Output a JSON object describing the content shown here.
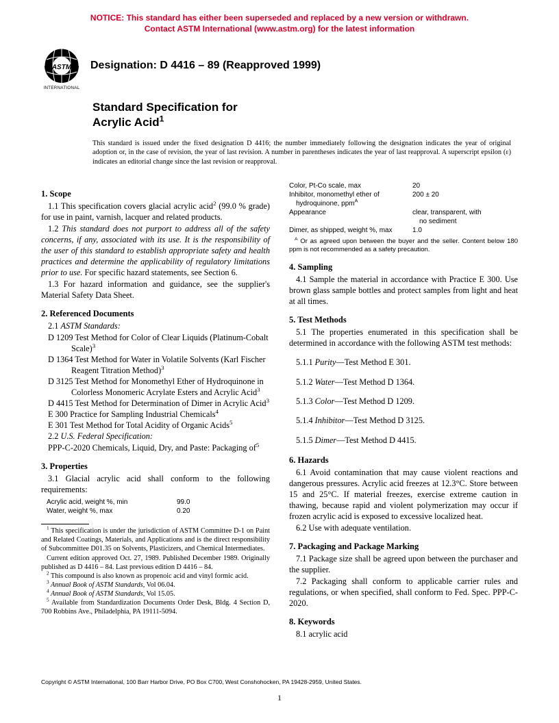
{
  "notice": {
    "color": "#d4002a",
    "line1": "NOTICE: This standard has either been superseded and replaced by a new version or withdrawn.",
    "line2": "Contact ASTM International (www.astm.org) for the latest information"
  },
  "logo": {
    "top_text": "ASTM",
    "bottom_text": "INTERNATIONAL",
    "fill": "#000000"
  },
  "designation": "Designation: D 4416 – 89 (Reapproved 1999)",
  "title_line1": "Standard Specification for",
  "title_line2": "Acrylic Acid",
  "title_sup": "1",
  "issuance": "This standard is issued under the fixed designation D 4416; the number immediately following the designation indicates the year of original adoption or, in the case of revision, the year of last revision. A number in parentheses indicates the year of last reapproval. A superscript epsilon (ε) indicates an editorial change since the last revision or reapproval.",
  "s1": {
    "head": "1.  Scope",
    "p1_a": "1.1 This specification covers glacial acrylic acid",
    "p1_sup": "2",
    "p1_b": " (99.0 % grade) for use in paint, varnish, lacquer and related products.",
    "p2_a": "1.2 ",
    "p2_i": "This standard does not purport to address all of the safety concerns, if any, associated with its use. It is the responsibility of the user of this standard to establish appropriate safety and health practices and determine the applicability of regulatory limitations prior to use.",
    "p2_b": " For specific hazard statements, see Section 6.",
    "p3": "1.3 For hazard information and guidance, see the supplier's Material Safety Data Sheet."
  },
  "s2": {
    "head": "2.  Referenced Documents",
    "p1_a": "2.1 ",
    "p1_i": "ASTM Standards:",
    "refs": [
      {
        "t": "D 1209  Test Method for Color of Clear Liquids (Platinum-Cobalt Scale)",
        "s": "3"
      },
      {
        "t": "D 1364  Test Method for Water in Volatile Solvents (Karl Fischer Reagent Titration Method)",
        "s": "3"
      },
      {
        "t": "D 3125  Test Method for Monomethyl Ether of Hydroquinone in Colorless Monomeric Acrylate Esters and Acrylic Acid",
        "s": "3"
      },
      {
        "t": "D 4415  Test Method for Determination of Dimer in Acrylic Acid",
        "s": "3"
      },
      {
        "t": "E 300  Practice for Sampling Industrial Chemicals",
        "s": "4"
      },
      {
        "t": "E 301  Test Method for Total Acidity of Organic Acids",
        "s": "5"
      }
    ],
    "p2_a": "2.2  ",
    "p2_i": "U.S. Federal Specification:",
    "fed": {
      "t": "PPP-C-2020  Chemicals, Liquid, Dry, and Paste: Packaging of",
      "s": "5"
    }
  },
  "s3": {
    "head": "3.  Properties",
    "p1": "3.1 Glacial acrylic acid shall conform to the following requirements:",
    "rows_left": [
      {
        "k": "Acrylic acid, weight %, min",
        "v": "99.0"
      },
      {
        "k": "Water, weight %, max",
        "v": "0.20"
      }
    ],
    "rows_right": [
      {
        "k": "Color, Pt-Co scale, max",
        "v": "20"
      },
      {
        "k": "Inhibitor, monomethyl ether of",
        "v": "200 ± 20"
      },
      {
        "k_indent": "hydroquinone, ppm",
        "ks": "A",
        "v": ""
      },
      {
        "k": "Appearance",
        "v": "clear, transparent, with"
      },
      {
        "k": "",
        "v_indent": "no sediment"
      },
      {
        "k": "Dimer, as shipped, weight %, max",
        "v": "1.0"
      }
    ],
    "tnote": " Or as agreed upon between the buyer and the seller. Content below 180 ppm is not recommended as a safety precaution.",
    "tnote_sup": "A"
  },
  "s4": {
    "head": "4.  Sampling",
    "p1": "4.1 Sample the material in accordance with Practice E 300. Use brown glass sample bottles and protect samples from light and heat at all times."
  },
  "s5": {
    "head": "5.  Test Methods",
    "p1": "5.1 The properties enumerated in this specification shall be determined in accordance with the following ASTM test methods:",
    "items": [
      {
        "n": "5.1.1 ",
        "i": "Purity",
        "t": "—Test Method E 301."
      },
      {
        "n": "5.1.2 ",
        "i": "Water",
        "t": "—Test Method D 1364."
      },
      {
        "n": "5.1.3 ",
        "i": "Color",
        "t": "—Test Method D 1209."
      },
      {
        "n": "5.1.4 ",
        "i": "Inhibitor",
        "t": "—Test Method D 3125."
      },
      {
        "n": "5.1.5 ",
        "i": "Dimer",
        "t": "—Test Method D 4415."
      }
    ]
  },
  "s6": {
    "head": "6.  Hazards",
    "p1": "6.1 Avoid contamination that may cause violent reactions and dangerous pressures. Acrylic acid freezes at 12.3°C. Store between 15 and 25°C. If material freezes, exercise extreme caution in thawing, because rapid and violent polymerization may occur if frozen acrylic acid is exposed to excessive localized heat.",
    "p2": "6.2 Use with adequate ventilation."
  },
  "s7": {
    "head": "7.  Packaging and Package Marking",
    "p1": "7.1 Package size shall be agreed upon between the purchaser and the supplier.",
    "p2": "7.2 Packaging shall conform to applicable carrier rules and regulations, or when specified, shall conform to Fed. Spec. PPP-C-2020."
  },
  "s8": {
    "head": "8.  Keywords",
    "p1": "8.1 acrylic acid"
  },
  "footnotes": {
    "f1": " This specification is under the jurisdiction of ASTM Committee D-1 on Paint and Related Coatings, Materials, and Applications and is the direct responsibility of Subcommittee D01.35 on Solvents, Plasticizers, and Chemical Intermediates.",
    "f1b": "Current edition approved Oct. 27, 1989. Published December 1989. Originally published as D 4416 – 84. Last previous edition D 4416 – 84.",
    "f2": " This compound is also known as propenoic acid and vinyl formic acid.",
    "f3_i": " Annual Book of ASTM Standards",
    "f3": ", Vol 06.04.",
    "f4_i": " Annual Book of ASTM Standards",
    "f4": ", Vol 15.05.",
    "f5": " Available from Standardization Documents Order Desk, Bldg. 4 Section D, 700 Robbins Ave., Philadelphia, PA 19111-5094."
  },
  "copyright": "Copyright © ASTM International, 100 Barr Harbor Drive, PO Box C700, West Conshohocken, PA 19428-2959, United States.",
  "pagenum": "1"
}
